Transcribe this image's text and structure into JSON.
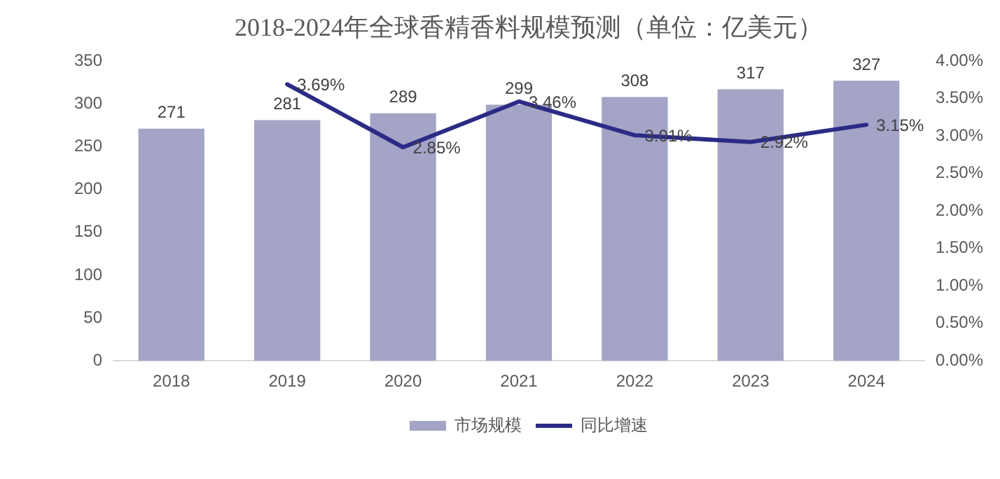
{
  "chart_data": {
    "type": "bar",
    "title": "2018-2024年全球香精香料规模预测（单位：亿美元）",
    "categories": [
      "2018",
      "2019",
      "2020",
      "2021",
      "2022",
      "2023",
      "2024"
    ],
    "series": [
      {
        "name": "市场规模",
        "color": "#a3a4c6",
        "values": [
          271,
          281,
          289,
          299,
          308,
          317,
          327
        ],
        "value_labels": [
          "271",
          "281",
          "289",
          "299",
          "308",
          "317",
          "327"
        ]
      },
      {
        "name": "同比增速",
        "type": "line",
        "axis": "y2",
        "color": "#2b2b86",
        "values": [
          null,
          3.69,
          2.85,
          3.46,
          3.01,
          2.92,
          3.15
        ],
        "value_labels": [
          null,
          "3.69%",
          "2.85%",
          "3.46%",
          "3.01%",
          "2.92%",
          "3.15%"
        ]
      }
    ],
    "ylim": [
      0,
      350
    ],
    "yticks": [
      0,
      50,
      100,
      150,
      200,
      250,
      300,
      350
    ],
    "y2lim": [
      0,
      4
    ],
    "y2ticks": [
      {
        "value": 0,
        "label": "0.00%"
      },
      {
        "value": 0.5,
        "label": "0.50%"
      },
      {
        "value": 1,
        "label": "1.00%"
      },
      {
        "value": 1.5,
        "label": "1.50%"
      },
      {
        "value": 2,
        "label": "2.00%"
      },
      {
        "value": 2.5,
        "label": "2.50%"
      },
      {
        "value": 3,
        "label": "3.00%"
      },
      {
        "value": 3.5,
        "label": "3.50%"
      },
      {
        "value": 4,
        "label": "4.00%"
      }
    ],
    "grid": false,
    "legend": "bottom",
    "marker": "none"
  }
}
